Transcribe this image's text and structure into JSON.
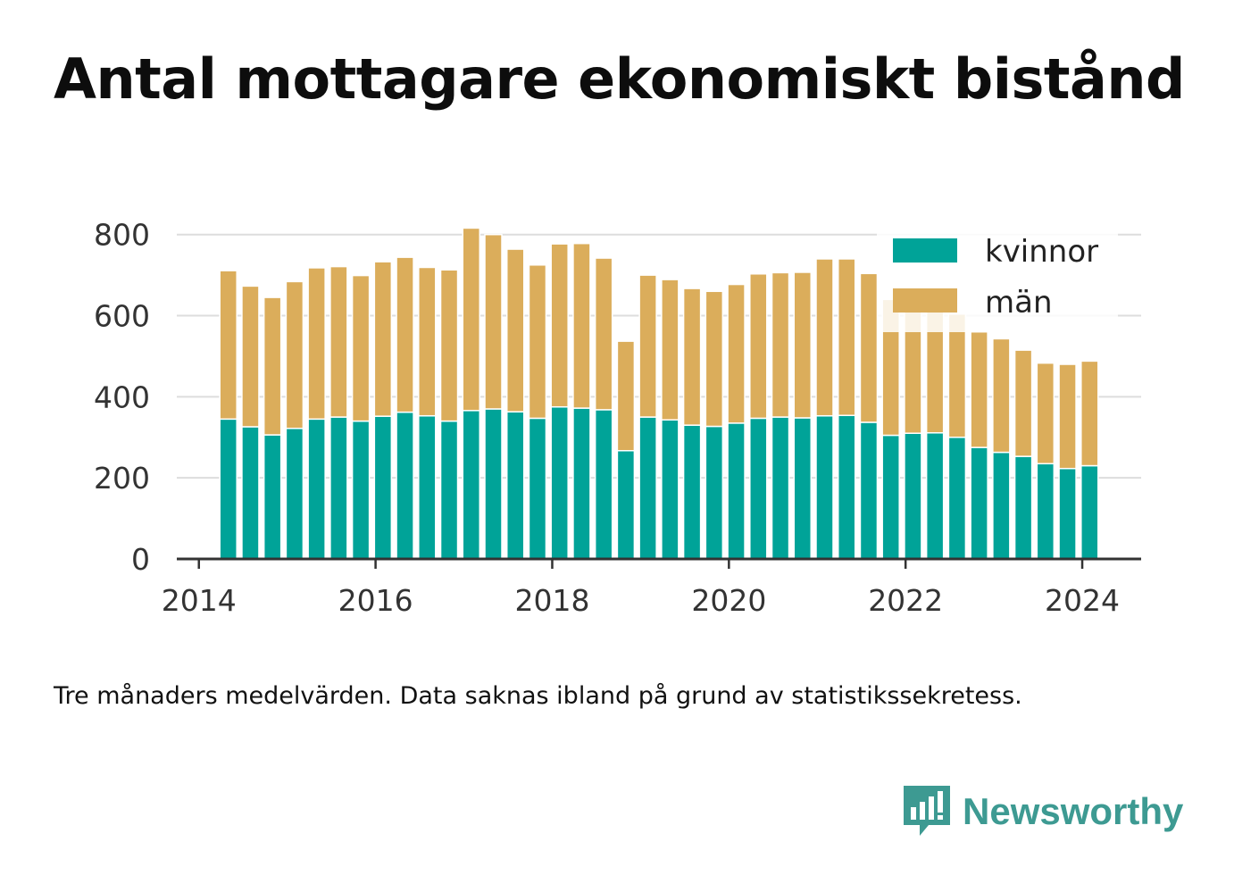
{
  "title": "Antal mottagare ekonomiskt bistånd",
  "caption": "Tre månaders medelvärden. Data saknas ibland på grund av statistikssekretess.",
  "brand": {
    "name": "Newsworthy",
    "icon": "newsworthy-logo-icon",
    "color": "#3d9a92"
  },
  "colors": {
    "kvinnor": "#00a398",
    "man": "#dbad5b",
    "grid": "#dddddd",
    "axis": "#333333"
  },
  "chart_data": {
    "type": "bar",
    "stacked": true,
    "x": [
      "2014-05",
      "2014-08",
      "2014-11",
      "2015-02",
      "2015-05",
      "2015-08",
      "2015-11",
      "2016-02",
      "2016-05",
      "2016-08",
      "2016-11",
      "2017-02",
      "2017-05",
      "2017-08",
      "2017-11",
      "2018-02",
      "2018-05",
      "2018-08",
      "2018-11",
      "2019-02",
      "2019-05",
      "2019-08",
      "2019-11",
      "2020-02",
      "2020-05",
      "2020-08",
      "2020-11",
      "2021-02",
      "2021-05",
      "2021-08",
      "2021-11",
      "2022-02",
      "2022-05",
      "2022-08",
      "2022-11",
      "2023-02",
      "2023-05",
      "2023-08",
      "2023-11",
      "2024-02"
    ],
    "series": [
      {
        "name": "kvinnor",
        "values": [
          345,
          326,
          306,
          322,
          345,
          350,
          340,
          352,
          362,
          353,
          340,
          366,
          370,
          363,
          347,
          375,
          372,
          368,
          267,
          350,
          343,
          330,
          327,
          335,
          347,
          350,
          348,
          353,
          354,
          337,
          305,
          310,
          311,
          300,
          275,
          263,
          253,
          235,
          223,
          230
        ]
      },
      {
        "name": "män",
        "values": [
          366,
          347,
          339,
          362,
          373,
          371,
          359,
          381,
          382,
          366,
          373,
          450,
          430,
          401,
          378,
          402,
          406,
          374,
          270,
          350,
          346,
          337,
          333,
          342,
          356,
          356,
          359,
          387,
          386,
          367,
          335,
          318,
          318,
          304,
          285,
          280,
          262,
          248,
          257,
          258
        ]
      }
    ],
    "xlim": [
      "2013-10",
      "2024-09"
    ],
    "ylim": [
      0,
      850
    ],
    "yticks": [
      0,
      200,
      400,
      600,
      800
    ],
    "xticks": [
      2014,
      2016,
      2018,
      2020,
      2022,
      2024
    ],
    "grid": "horizontal",
    "legend": "top-right"
  }
}
